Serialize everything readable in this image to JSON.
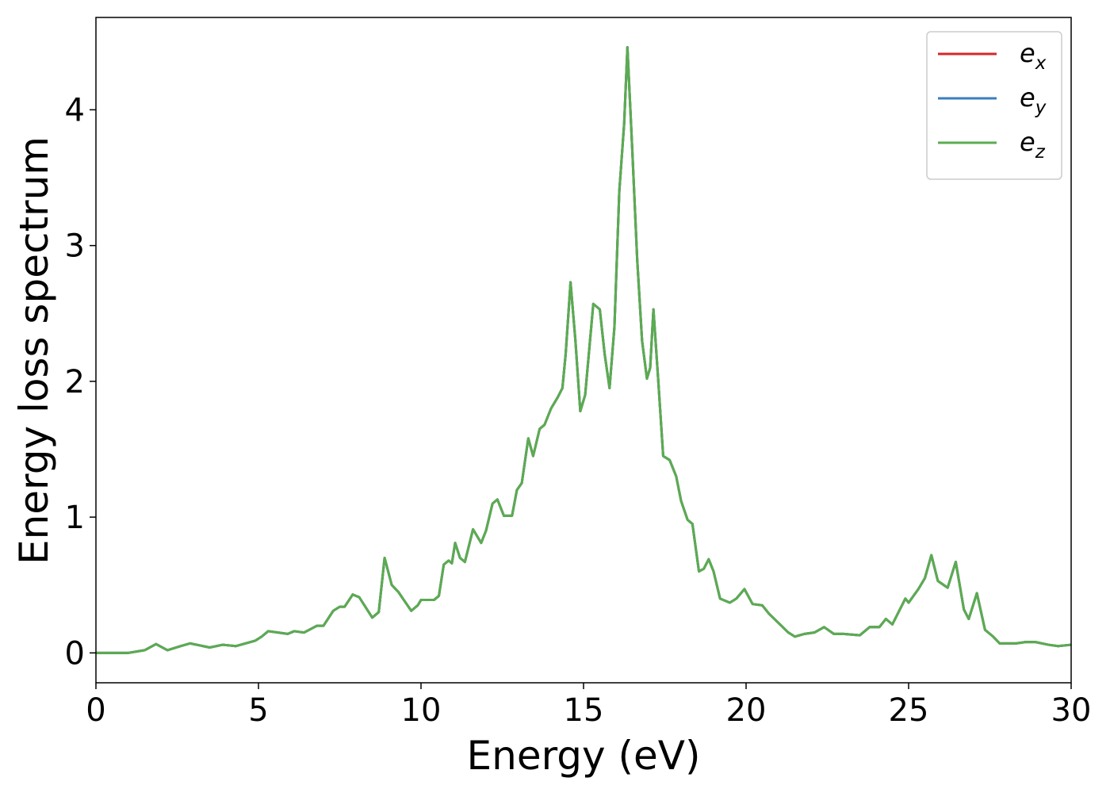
{
  "chart_data": {
    "type": "line",
    "xlabel": "Energy (eV)",
    "ylabel": "Energy loss spectrum",
    "x": [
      0,
      1,
      1.5,
      1.85,
      2.2,
      2.6,
      2.9,
      3.5,
      3.9,
      4.3,
      4.9,
      5.1,
      5.3,
      5.6,
      5.9,
      6.1,
      6.4,
      6.8,
      7,
      7.3,
      7.5,
      7.65,
      7.9,
      8.1,
      8.5,
      8.7,
      8.88,
      9.1,
      9.3,
      9.7,
      9.9,
      10,
      10.4,
      10.55,
      10.7,
      10.85,
      10.95,
      11.05,
      11.2,
      11.35,
      11.6,
      11.85,
      12,
      12.2,
      12.35,
      12.55,
      12.8,
      12.95,
      13.1,
      13.3,
      13.45,
      13.65,
      13.8,
      14,
      14.2,
      14.35,
      14.45,
      14.6,
      14.75,
      14.9,
      15.05,
      15.3,
      15.5,
      15.65,
      15.8,
      15.95,
      16.1,
      16.25,
      16.35,
      16.5,
      16.65,
      16.8,
      16.95,
      17.05,
      17.15,
      17.3,
      17.45,
      17.65,
      17.85,
      18,
      18.2,
      18.35,
      18.55,
      18.7,
      18.85,
      19,
      19.2,
      19.5,
      19.7,
      19.95,
      20.2,
      20.5,
      20.7,
      21,
      21.3,
      21.5,
      21.8,
      22.1,
      22.4,
      22.7,
      23,
      23.5,
      23.8,
      24.1,
      24.3,
      24.5,
      24.9,
      25,
      25.3,
      25.5,
      25.7,
      25.9,
      26.2,
      26.45,
      26.7,
      26.85,
      27.1,
      27.35,
      27.6,
      27.8,
      28.3,
      28.6,
      28.9,
      29.3,
      29.6,
      30
    ],
    "series": [
      {
        "name": "e_x",
        "color": "#d62728",
        "values": [
          0,
          0,
          0.02,
          0.065,
          0.02,
          0.05,
          0.07,
          0.04,
          0.06,
          0.05,
          0.09,
          0.12,
          0.16,
          0.15,
          0.14,
          0.16,
          0.15,
          0.2,
          0.2,
          0.31,
          0.34,
          0.34,
          0.43,
          0.41,
          0.26,
          0.3,
          0.7,
          0.5,
          0.45,
          0.31,
          0.35,
          0.39,
          0.39,
          0.42,
          0.65,
          0.68,
          0.66,
          0.81,
          0.7,
          0.67,
          0.91,
          0.81,
          0.9,
          1.1,
          1.13,
          1.01,
          1.01,
          1.2,
          1.25,
          1.58,
          1.45,
          1.65,
          1.68,
          1.8,
          1.88,
          1.95,
          2.2,
          2.73,
          2.3,
          1.78,
          1.9,
          2.57,
          2.53,
          2.2,
          1.95,
          2.4,
          3.4,
          3.9,
          4.46,
          3.7,
          2.9,
          2.3,
          2.02,
          2.1,
          2.53,
          2,
          1.45,
          1.42,
          1.3,
          1.12,
          0.98,
          0.95,
          0.6,
          0.62,
          0.69,
          0.6,
          0.4,
          0.37,
          0.4,
          0.47,
          0.36,
          0.35,
          0.29,
          0.22,
          0.15,
          0.12,
          0.14,
          0.15,
          0.19,
          0.14,
          0.14,
          0.13,
          0.19,
          0.19,
          0.25,
          0.21,
          0.4,
          0.37,
          0.47,
          0.55,
          0.72,
          0.53,
          0.48,
          0.67,
          0.32,
          0.25,
          0.44,
          0.17,
          0.12,
          0.07,
          0.07,
          0.08,
          0.08,
          0.06,
          0.05,
          0.06
        ]
      },
      {
        "name": "e_y",
        "color": "#3a7ebf",
        "values": [
          0,
          0,
          0.02,
          0.065,
          0.02,
          0.05,
          0.07,
          0.04,
          0.06,
          0.05,
          0.09,
          0.12,
          0.16,
          0.15,
          0.14,
          0.16,
          0.15,
          0.2,
          0.2,
          0.31,
          0.34,
          0.34,
          0.43,
          0.41,
          0.26,
          0.3,
          0.7,
          0.5,
          0.45,
          0.31,
          0.35,
          0.39,
          0.39,
          0.42,
          0.65,
          0.68,
          0.66,
          0.81,
          0.7,
          0.67,
          0.91,
          0.81,
          0.9,
          1.1,
          1.13,
          1.01,
          1.01,
          1.2,
          1.25,
          1.58,
          1.45,
          1.65,
          1.68,
          1.8,
          1.88,
          1.95,
          2.2,
          2.73,
          2.3,
          1.78,
          1.9,
          2.57,
          2.53,
          2.2,
          1.95,
          2.4,
          3.4,
          3.9,
          4.46,
          3.7,
          2.9,
          2.3,
          2.02,
          2.1,
          2.53,
          2,
          1.45,
          1.42,
          1.3,
          1.12,
          0.98,
          0.95,
          0.6,
          0.62,
          0.69,
          0.6,
          0.4,
          0.37,
          0.4,
          0.47,
          0.36,
          0.35,
          0.29,
          0.22,
          0.15,
          0.12,
          0.14,
          0.15,
          0.19,
          0.14,
          0.14,
          0.13,
          0.19,
          0.19,
          0.25,
          0.21,
          0.4,
          0.37,
          0.47,
          0.55,
          0.72,
          0.53,
          0.48,
          0.67,
          0.32,
          0.25,
          0.44,
          0.17,
          0.12,
          0.07,
          0.07,
          0.08,
          0.08,
          0.06,
          0.05,
          0.06
        ]
      },
      {
        "name": "e_z",
        "color": "#5aac50",
        "values": [
          0,
          0,
          0.02,
          0.065,
          0.02,
          0.05,
          0.07,
          0.04,
          0.06,
          0.05,
          0.09,
          0.12,
          0.16,
          0.15,
          0.14,
          0.16,
          0.15,
          0.2,
          0.2,
          0.31,
          0.34,
          0.34,
          0.43,
          0.41,
          0.26,
          0.3,
          0.7,
          0.5,
          0.45,
          0.31,
          0.35,
          0.39,
          0.39,
          0.42,
          0.65,
          0.68,
          0.66,
          0.81,
          0.7,
          0.67,
          0.91,
          0.81,
          0.9,
          1.1,
          1.13,
          1.01,
          1.01,
          1.2,
          1.25,
          1.58,
          1.45,
          1.65,
          1.68,
          1.8,
          1.88,
          1.95,
          2.2,
          2.73,
          2.3,
          1.78,
          1.9,
          2.57,
          2.53,
          2.2,
          1.95,
          2.4,
          3.4,
          3.9,
          4.46,
          3.7,
          2.9,
          2.3,
          2.02,
          2.1,
          2.53,
          2,
          1.45,
          1.42,
          1.3,
          1.12,
          0.98,
          0.95,
          0.6,
          0.62,
          0.69,
          0.6,
          0.4,
          0.37,
          0.4,
          0.47,
          0.36,
          0.35,
          0.29,
          0.22,
          0.15,
          0.12,
          0.14,
          0.15,
          0.19,
          0.14,
          0.14,
          0.13,
          0.19,
          0.19,
          0.25,
          0.21,
          0.4,
          0.37,
          0.47,
          0.55,
          0.72,
          0.53,
          0.48,
          0.67,
          0.32,
          0.25,
          0.44,
          0.17,
          0.12,
          0.07,
          0.07,
          0.08,
          0.08,
          0.06,
          0.05,
          0.06
        ]
      }
    ],
    "xlim": [
      0,
      30
    ],
    "xticks": [
      0,
      5,
      10,
      15,
      20,
      25,
      30
    ],
    "ylim": [
      -0.22,
      4.68
    ],
    "yticks": [
      0,
      1,
      2,
      3,
      4
    ],
    "grid": false,
    "legend": "upper right"
  }
}
